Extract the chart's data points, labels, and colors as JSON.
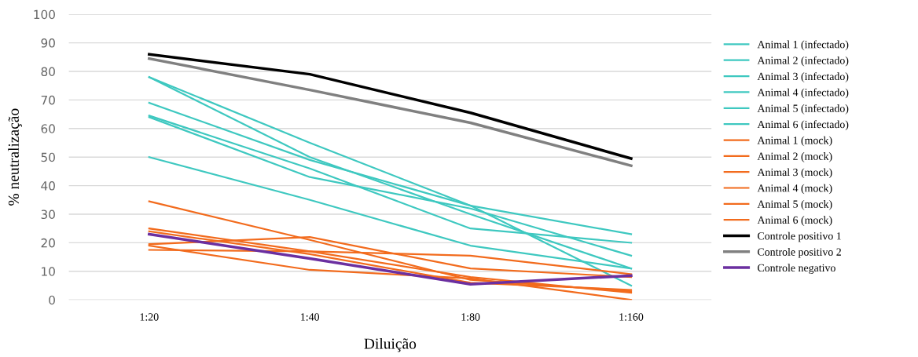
{
  "chart_data": {
    "type": "line",
    "xlabel": "Diluição",
    "ylabel": "% neutralização",
    "categories": [
      "1:20",
      "1:40",
      "1:80",
      "1:160"
    ],
    "ylim": [
      0,
      100
    ],
    "yticks": [
      0,
      10,
      20,
      30,
      40,
      50,
      60,
      70,
      80,
      90,
      100
    ],
    "grid": "y",
    "legend": "right",
    "marker": "none",
    "line_style": "solid",
    "series": [
      {
        "name": "Animal 1 (infectado)",
        "color": "#3ec8c0",
        "values": [
          78,
          55,
          33,
          5
        ]
      },
      {
        "name": "Animal 2 (infectado)",
        "color": "#3ec8c0",
        "values": [
          78,
          50,
          30,
          11
        ]
      },
      {
        "name": "Animal 3 (infectado)",
        "color": "#3ec8c0",
        "values": [
          69,
          49,
          33,
          23
        ]
      },
      {
        "name": "Animal 4 (infectado)",
        "color": "#3ec8c0",
        "values": [
          64.5,
          46,
          25,
          20
        ]
      },
      {
        "name": "Animal 5 (infectado)",
        "color": "#3ec8c0",
        "values": [
          64,
          43,
          32,
          15.5
        ]
      },
      {
        "name": "Animal 6 (infectado)",
        "color": "#3ec8c0",
        "values": [
          50,
          35,
          19,
          11
        ]
      },
      {
        "name": "Animal 1 (mock)",
        "color": "#f26b1d",
        "values": [
          34.5,
          21,
          7,
          3
        ]
      },
      {
        "name": "Animal 2 (mock)",
        "color": "#f26b1d",
        "values": [
          25,
          17,
          8,
          2.5
        ]
      },
      {
        "name": "Animal 3 (mock)",
        "color": "#f26b1d",
        "values": [
          19.5,
          22,
          11,
          8
        ]
      },
      {
        "name": "Animal 4 (mock)",
        "color": "#f26b1d",
        "values": [
          24,
          16,
          6,
          3.5
        ]
      },
      {
        "name": "Animal 5 (mock)",
        "color": "#f26b1d",
        "values": [
          17.5,
          17,
          15.5,
          9
        ]
      },
      {
        "name": "Animal 6 (mock)",
        "color": "#f26b1d",
        "values": [
          19,
          10.5,
          7.5,
          0
        ]
      },
      {
        "name": "Controle positivo 1",
        "color": "#000000",
        "values": [
          86,
          79,
          65.5,
          49.5
        ]
      },
      {
        "name": "Controle positivo 2",
        "color": "#808080",
        "values": [
          84.5,
          73.5,
          62,
          47
        ]
      },
      {
        "name": "Controle negativo",
        "color": "#6b2fa0",
        "values": [
          23,
          14.5,
          5.5,
          8.5
        ]
      }
    ]
  }
}
